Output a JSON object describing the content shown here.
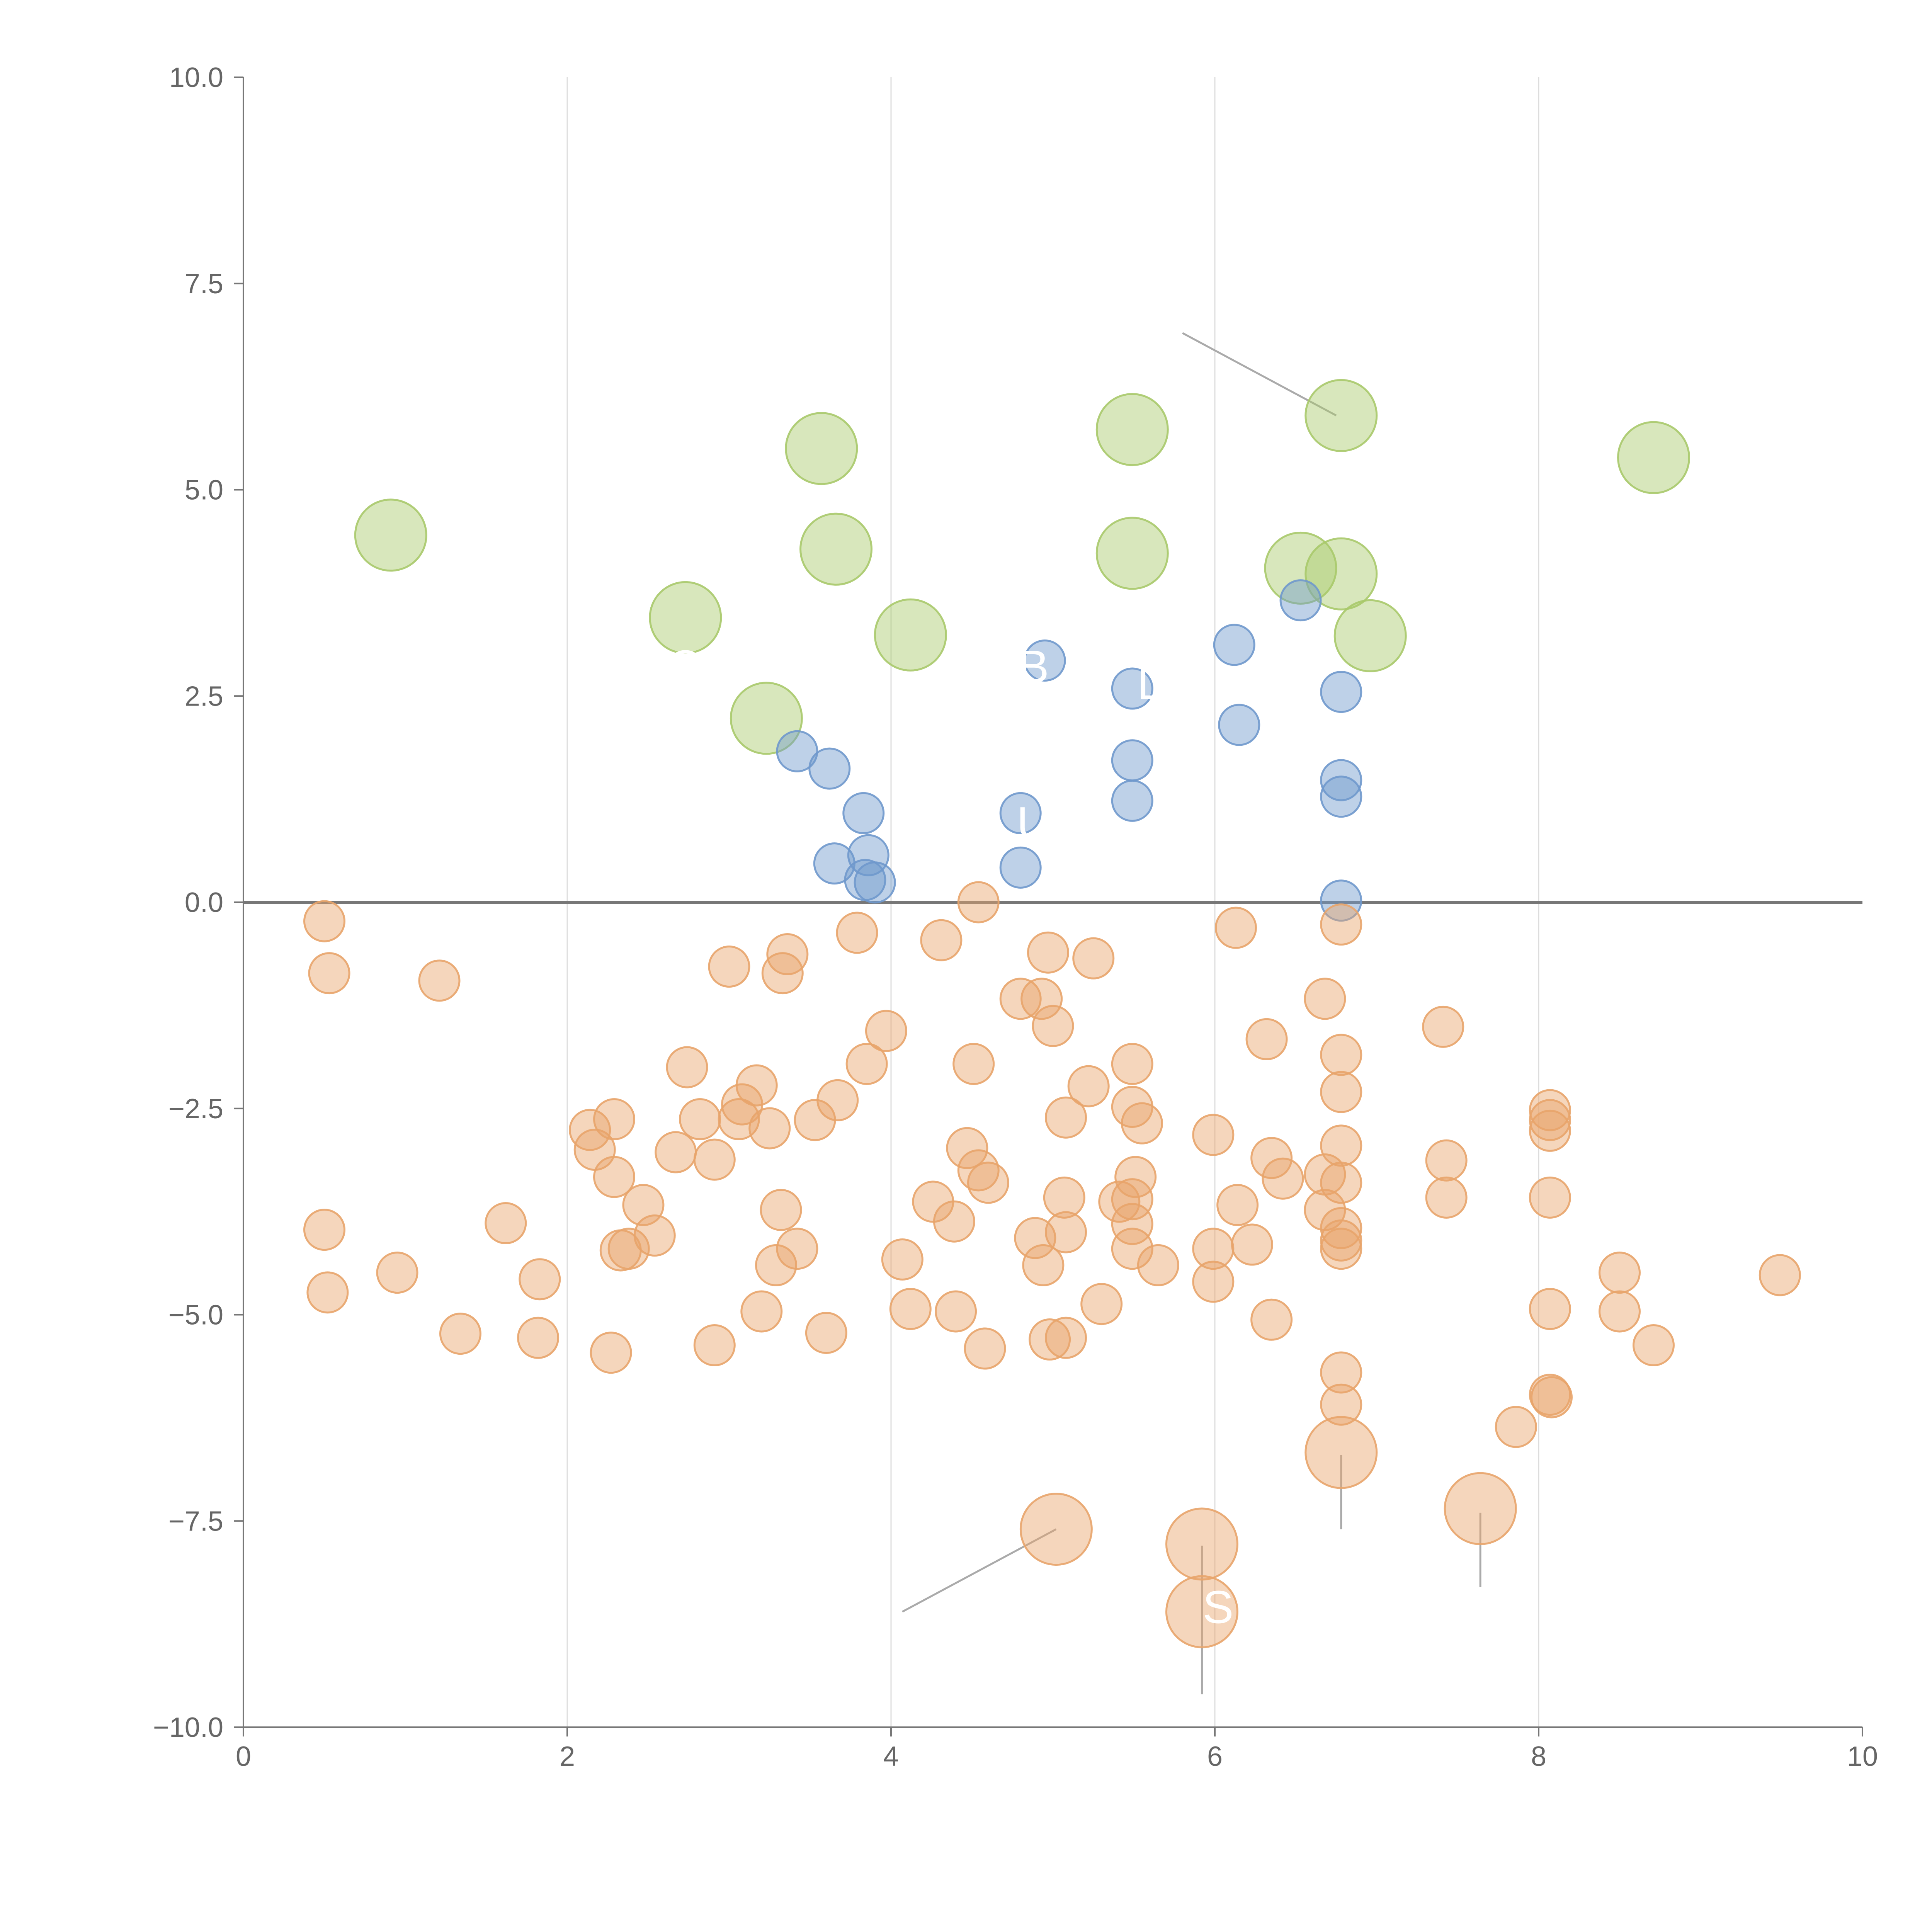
{
  "chart_data": {
    "type": "scatter",
    "title": "",
    "xlabel": "",
    "ylabel": "",
    "xlim": [
      0,
      10
    ],
    "ylim": [
      -10,
      10
    ],
    "x_ticks": [
      0,
      2,
      4,
      6,
      8,
      10
    ],
    "x_tick_labels": [
      "0",
      "2",
      "4",
      "6",
      "8",
      "10"
    ],
    "y_ticks": [
      10,
      7.5,
      5,
      2.5,
      0,
      -2.5,
      -5,
      -7.5,
      -10
    ],
    "y_tick_labels": [
      "10.0",
      "7.5",
      "5.0",
      "2.5",
      "0.0",
      "−2.5",
      "−5.0",
      "−7.5",
      "−10.0"
    ],
    "vertical_gridlines": [
      2,
      4,
      6,
      8
    ],
    "zero_line": 0,
    "colors": {
      "green": "#a9c96a",
      "blue": "#6f98cc",
      "orange": "#e8a46a",
      "axis": "#777777",
      "grid": "#dddddd",
      "leader": "#aaaaaa"
    },
    "series": [
      {
        "name": "green",
        "color": "#a9c96a",
        "size": "large",
        "points": [
          [
            0.91,
            4.45
          ],
          [
            2.73,
            3.45
          ],
          [
            3.23,
            2.23
          ],
          [
            3.57,
            5.5
          ],
          [
            3.66,
            4.28
          ],
          [
            4.12,
            3.24
          ],
          [
            5.49,
            5.73
          ],
          [
            5.49,
            4.23
          ],
          [
            6.53,
            4.05
          ],
          [
            6.78,
            5.9
          ],
          [
            6.78,
            3.98
          ],
          [
            6.96,
            3.23
          ],
          [
            8.71,
            5.39
          ]
        ]
      },
      {
        "name": "blue",
        "color": "#6f98cc",
        "size": "small",
        "points": [
          [
            3.42,
            1.83
          ],
          [
            3.62,
            1.62
          ],
          [
            3.65,
            0.47
          ],
          [
            3.83,
            1.08
          ],
          [
            3.86,
            0.57
          ],
          [
            3.84,
            0.27
          ],
          [
            3.9,
            0.24
          ],
          [
            4.8,
            1.08
          ],
          [
            4.8,
            0.42
          ],
          [
            4.95,
            2.93
          ],
          [
            5.49,
            2.59
          ],
          [
            5.49,
            1.72
          ],
          [
            5.49,
            1.23
          ],
          [
            6.12,
            3.12
          ],
          [
            6.15,
            2.15
          ],
          [
            6.53,
            3.66
          ],
          [
            6.78,
            2.55
          ],
          [
            6.78,
            1.48
          ],
          [
            6.78,
            1.28
          ],
          [
            6.78,
            0.02
          ]
        ]
      },
      {
        "name": "orange",
        "color": "#e8a46a",
        "size": "small",
        "points": [
          [
            0.5,
            -0.23
          ],
          [
            0.53,
            -0.86
          ],
          [
            1.21,
            -0.95
          ],
          [
            0.5,
            -3.97
          ],
          [
            0.52,
            -4.73
          ],
          [
            0.95,
            -4.49
          ],
          [
            1.34,
            -5.23
          ],
          [
            1.62,
            -3.89
          ],
          [
            1.82,
            -5.28
          ],
          [
            1.83,
            -4.57
          ],
          [
            2.14,
            -2.76
          ],
          [
            2.17,
            -3.0
          ],
          [
            2.27,
            -5.46
          ],
          [
            2.29,
            -2.63
          ],
          [
            2.29,
            -3.33
          ],
          [
            2.33,
            -4.22
          ],
          [
            2.38,
            -4.2
          ],
          [
            2.47,
            -3.67
          ],
          [
            2.54,
            -4.04
          ],
          [
            2.67,
            -3.03
          ],
          [
            2.74,
            -2.0
          ],
          [
            2.82,
            -2.63
          ],
          [
            2.91,
            -3.12
          ],
          [
            2.91,
            -5.37
          ],
          [
            3.0,
            -0.78
          ],
          [
            3.06,
            -2.63
          ],
          [
            3.08,
            -2.45
          ],
          [
            3.17,
            -2.22
          ],
          [
            3.2,
            -4.96
          ],
          [
            3.25,
            -2.74
          ],
          [
            3.29,
            -4.4
          ],
          [
            3.32,
            -3.73
          ],
          [
            3.33,
            -0.86
          ],
          [
            3.36,
            -0.63
          ],
          [
            3.42,
            -4.2
          ],
          [
            3.53,
            -2.64
          ],
          [
            3.6,
            -5.22
          ],
          [
            3.67,
            -2.4
          ],
          [
            3.79,
            -0.37
          ],
          [
            3.85,
            -1.96
          ],
          [
            3.97,
            -1.56
          ],
          [
            4.07,
            -4.33
          ],
          [
            4.12,
            -4.93
          ],
          [
            4.31,
            -0.46
          ],
          [
            4.26,
            -3.63
          ],
          [
            4.39,
            -3.87
          ],
          [
            4.4,
            -4.96
          ],
          [
            4.47,
            -2.98
          ],
          [
            4.51,
            -1.96
          ],
          [
            4.54,
            -3.25
          ],
          [
            4.54,
            0.0
          ],
          [
            4.58,
            -5.41
          ],
          [
            4.6,
            -3.4
          ],
          [
            4.8,
            -1.17
          ],
          [
            4.89,
            -4.07
          ],
          [
            4.93,
            -1.17
          ],
          [
            4.94,
            -4.4
          ],
          [
            4.97,
            -0.61
          ],
          [
            4.98,
            -5.3
          ],
          [
            5.0,
            -1.5
          ],
          [
            5.07,
            -3.58
          ],
          [
            5.08,
            -2.61
          ],
          [
            5.08,
            -5.28
          ],
          [
            5.08,
            -4.0
          ],
          [
            5.22,
            -2.23
          ],
          [
            5.25,
            -0.68
          ],
          [
            5.3,
            -4.87
          ],
          [
            5.41,
            -3.63
          ],
          [
            5.49,
            -1.96
          ],
          [
            5.49,
            -2.48
          ],
          [
            5.49,
            -3.6
          ],
          [
            5.49,
            -3.9
          ],
          [
            5.49,
            -4.2
          ],
          [
            5.51,
            -3.33
          ],
          [
            5.55,
            -2.68
          ],
          [
            5.65,
            -4.4
          ],
          [
            5.99,
            -2.82
          ],
          [
            5.99,
            -4.2
          ],
          [
            5.99,
            -4.6
          ],
          [
            6.13,
            -0.31
          ],
          [
            6.14,
            -3.67
          ],
          [
            6.23,
            -4.15
          ],
          [
            6.32,
            -1.66
          ],
          [
            6.35,
            -3.1
          ],
          [
            6.35,
            -5.06
          ],
          [
            6.42,
            -3.35
          ],
          [
            6.68,
            -1.17
          ],
          [
            6.68,
            -3.73
          ],
          [
            6.68,
            -3.3
          ],
          [
            6.78,
            -0.27
          ],
          [
            6.78,
            -1.85
          ],
          [
            6.78,
            -2.3
          ],
          [
            6.78,
            -2.95
          ],
          [
            6.78,
            -3.4
          ],
          [
            6.78,
            -3.95
          ],
          [
            6.78,
            -4.1
          ],
          [
            6.78,
            -4.2
          ],
          [
            6.78,
            -5.7
          ],
          [
            6.78,
            -6.09
          ],
          [
            7.41,
            -1.51
          ],
          [
            7.43,
            -3.13
          ],
          [
            7.43,
            -3.58
          ],
          [
            7.86,
            -6.36
          ],
          [
            8.07,
            -2.52
          ],
          [
            8.07,
            -2.64
          ],
          [
            8.07,
            -2.77
          ],
          [
            8.07,
            -3.58
          ],
          [
            8.07,
            -4.93
          ],
          [
            8.07,
            -5.97
          ],
          [
            8.08,
            -6.0
          ],
          [
            8.5,
            -4.49
          ],
          [
            8.5,
            -4.96
          ],
          [
            8.71,
            -5.37
          ],
          [
            9.49,
            -4.52
          ]
        ]
      },
      {
        "name": "orange-large",
        "color": "#e8a46a",
        "size": "large",
        "points": [
          [
            5.02,
            -7.6
          ],
          [
            5.92,
            -7.78
          ],
          [
            5.92,
            -8.6
          ],
          [
            6.78,
            -6.67
          ],
          [
            7.64,
            -7.35
          ]
        ]
      }
    ],
    "annotations": [
      {
        "text": "S",
        "x": 6.02,
        "y": -8.55
      },
      {
        "text": "O",
        "x": 2.73,
        "y": 2.85
      },
      {
        "text": "B",
        "x": 4.88,
        "y": 2.85
      },
      {
        "text": "L",
        "x": 5.6,
        "y": 2.65
      },
      {
        "text": "U",
        "x": 4.88,
        "y": 0.95
      }
    ]
  }
}
